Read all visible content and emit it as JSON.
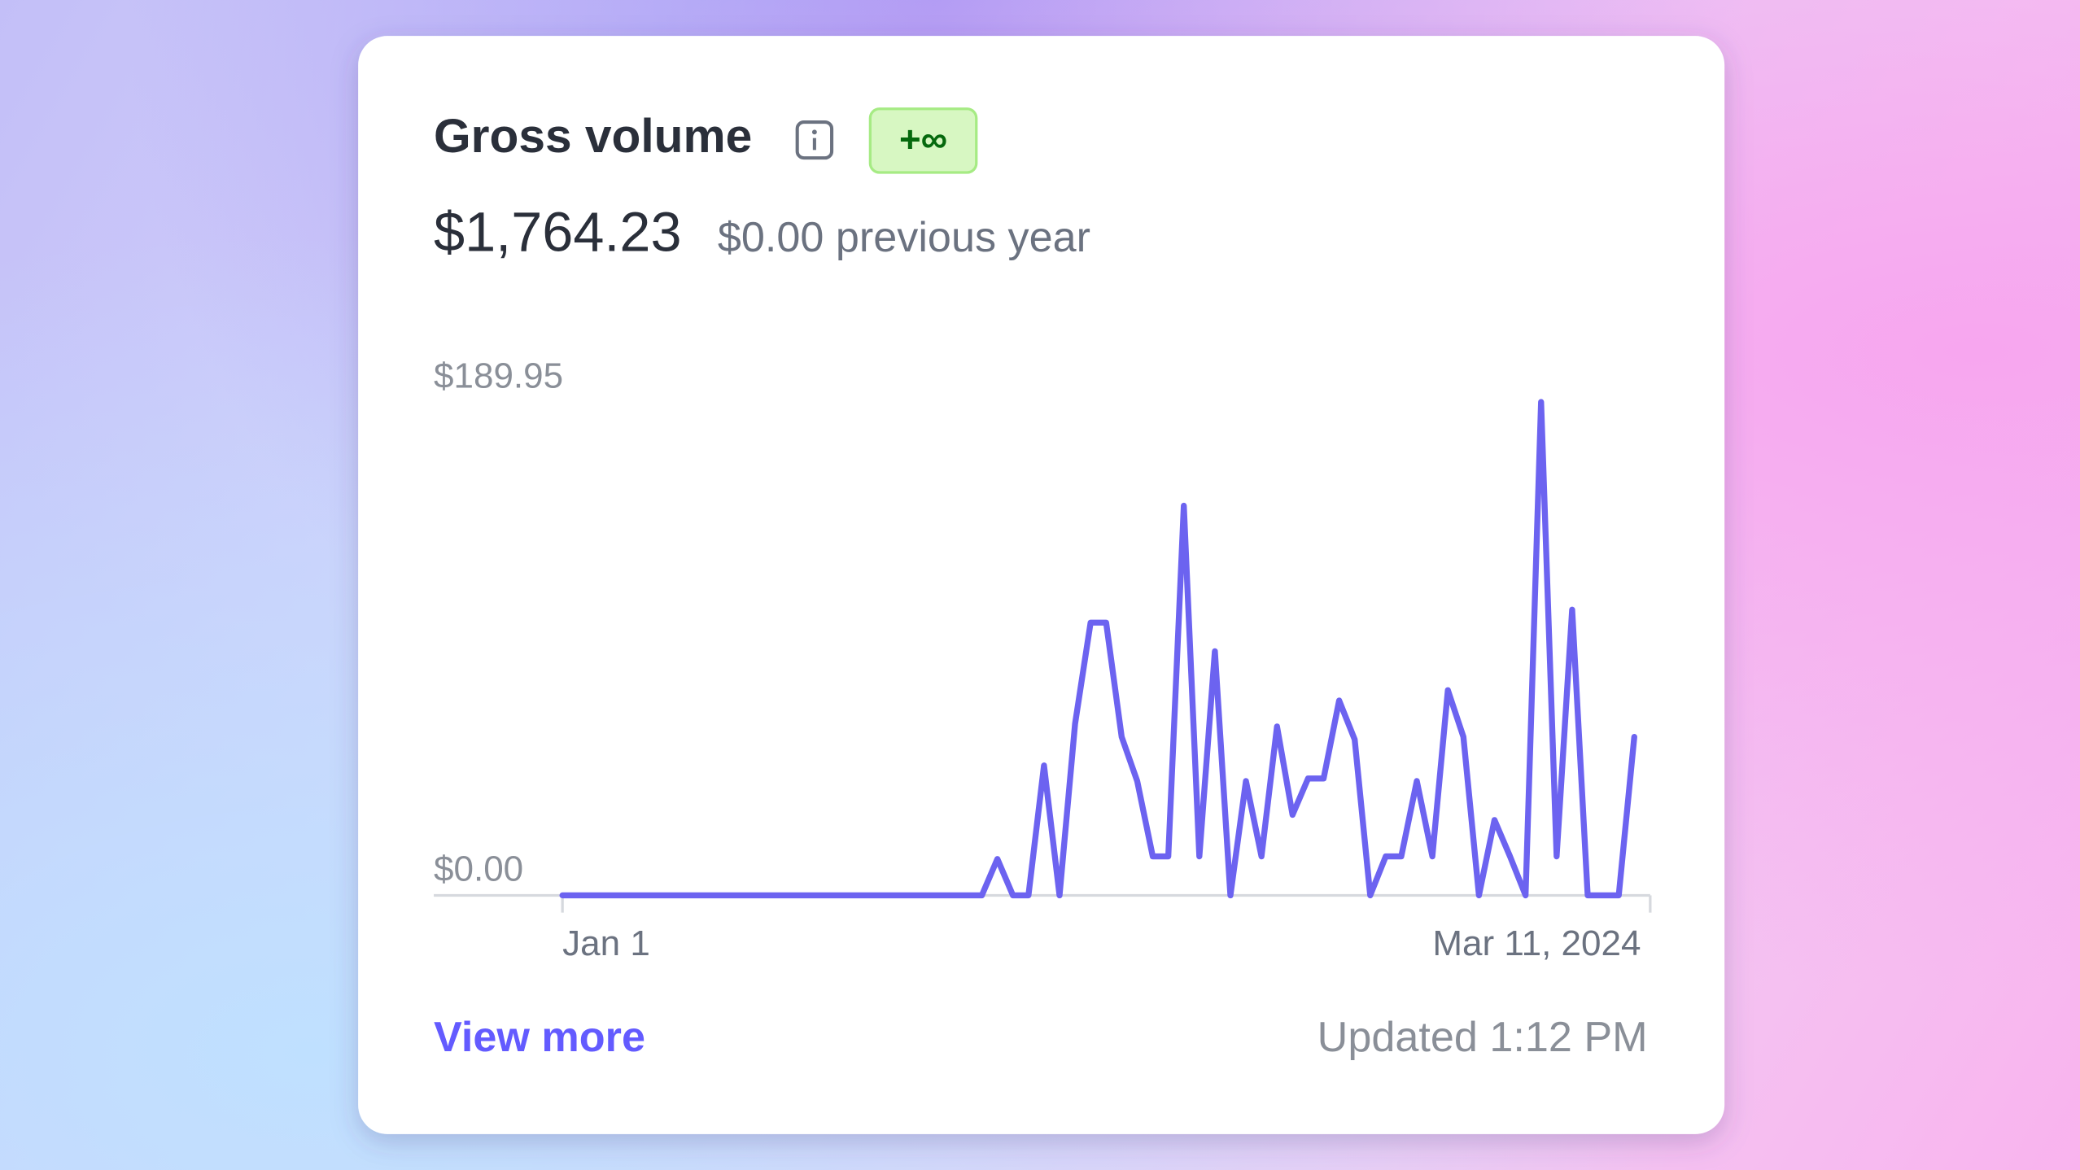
{
  "card": {
    "title": "Gross volume",
    "badge": "+∞",
    "amount": "$1,764.23",
    "comparison": "$0.00 previous year",
    "link": "View more",
    "updated": "Updated 1:12 PM"
  },
  "chart_data": {
    "type": "line",
    "color": "#6c63f0",
    "categories": [
      "Jan 1",
      null,
      null,
      null,
      null,
      null,
      null,
      null,
      null,
      null,
      null,
      null,
      null,
      null,
      null,
      null,
      null,
      null,
      null,
      null,
      null,
      null,
      null,
      null,
      null,
      null,
      null,
      null,
      null,
      null,
      null,
      null,
      null,
      null,
      null,
      null,
      null,
      null,
      null,
      null,
      null,
      null,
      null,
      null,
      null,
      null,
      null,
      null,
      null,
      null,
      null,
      null,
      null,
      null,
      null,
      null,
      null,
      null,
      null,
      null,
      null,
      null,
      null,
      null,
      null,
      null,
      null,
      null,
      null,
      "Mar 11, 2024"
    ],
    "values": [
      0,
      0,
      0,
      0,
      0,
      0,
      0,
      0,
      0,
      0,
      0,
      0,
      0,
      0,
      0,
      0,
      0,
      0,
      0,
      0,
      0,
      0,
      0,
      0,
      0,
      0,
      0,
      0,
      14,
      0,
      0,
      50,
      0,
      66,
      105,
      105,
      61,
      44,
      15,
      15,
      150,
      15,
      94,
      0,
      44,
      15,
      65,
      31,
      45,
      45,
      75,
      60,
      0,
      15,
      15,
      44,
      15,
      79,
      61,
      0,
      29,
      15,
      0,
      189.95,
      15,
      110,
      0,
      0,
      0,
      61
    ],
    "ylim": [
      0,
      189.95
    ],
    "yticks": [
      {
        "value": 0,
        "label": "$0.00"
      },
      {
        "value": 189.95,
        "label": "$189.95"
      }
    ]
  }
}
